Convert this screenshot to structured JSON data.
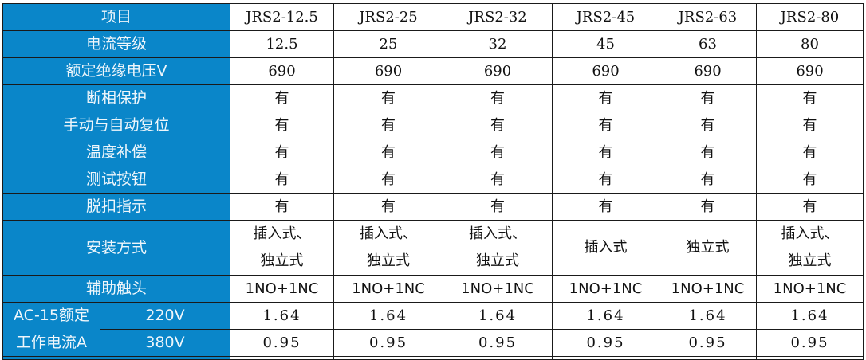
{
  "header": {
    "label": "项目",
    "models": [
      "JRS2-12.5",
      "JRS2-25",
      "JRS2-32",
      "JRS2-45",
      "JRS2-63",
      "JRS2-80"
    ]
  },
  "rows": [
    {
      "label": "电流等级",
      "values": [
        "12.5",
        "25",
        "32",
        "45",
        "63",
        "80"
      ]
    },
    {
      "label": "额定绝缘电压V",
      "values": [
        "690",
        "690",
        "690",
        "690",
        "690",
        "690"
      ]
    },
    {
      "label": "断相保护",
      "values": [
        "有",
        "有",
        "有",
        "有",
        "有",
        "有"
      ]
    },
    {
      "label": "手动与自动复位",
      "values": [
        "有",
        "有",
        "有",
        "有",
        "有",
        "有"
      ]
    },
    {
      "label": "温度补偿",
      "values": [
        "有",
        "有",
        "有",
        "有",
        "有",
        "有"
      ]
    },
    {
      "label": "测试按钮",
      "values": [
        "有",
        "有",
        "有",
        "有",
        "有",
        "有"
      ]
    },
    {
      "label": "脱扣指示",
      "values": [
        "有",
        "有",
        "有",
        "有",
        "有",
        "有"
      ]
    },
    {
      "label": "安装方式",
      "values": [
        "插入式、\n独立式",
        "插入式、\n独立式",
        "插入式、\n独立式",
        "插入式",
        "独立式",
        "插入式、\n独立式"
      ]
    },
    {
      "label": "辅助触头",
      "values": [
        "1NO+1NC",
        "1NO+1NC",
        "1NO+1NC",
        "1NO+1NC",
        "1NO+1NC",
        "1NO+1NC"
      ]
    }
  ],
  "ac15": {
    "label_line1": "AC-15额定",
    "label_line2": "工作电流A",
    "sub": [
      {
        "voltage": "220V",
        "values": [
          "1.64",
          "1.64",
          "1.64",
          "1.64",
          "1.64",
          "1.64"
        ]
      },
      {
        "voltage": "380V",
        "values": [
          "0.95",
          "0.95",
          "0.95",
          "0.95",
          "0.95",
          "0.95"
        ]
      }
    ]
  },
  "colors": {
    "header_bg": "#0a86c9",
    "header_text": "#eef6fb",
    "border": "#1a1a1a"
  }
}
